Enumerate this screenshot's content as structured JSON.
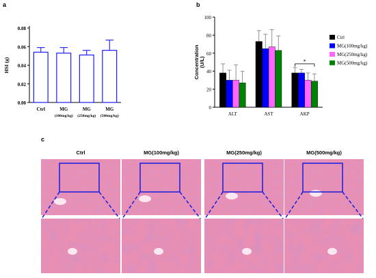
{
  "panels": {
    "a": "a",
    "b": "b",
    "c": "c"
  },
  "chart_data": [
    {
      "type": "bar",
      "panel": "a",
      "categories": [
        "Ctrl",
        "MG",
        "MG",
        "MG"
      ],
      "category_sublabels": [
        "",
        "(100mg/kg)",
        "(250mg/kg)",
        "(500mg/kg)"
      ],
      "values": [
        0.054,
        0.053,
        0.051,
        0.056
      ],
      "errors": [
        0.005,
        0.006,
        0.005,
        0.011
      ],
      "ylabel": "HSI (g)",
      "ylim": [
        0,
        0.08
      ],
      "yticks": [
        "0.00",
        "0.02",
        "0.04",
        "0.06",
        "0.08"
      ],
      "ytick_values": [
        0,
        0.02,
        0.04,
        0.06,
        0.08
      ],
      "bar_fill": "#ffffff",
      "bar_stroke": "#1a1aff",
      "grid": false
    },
    {
      "type": "bar",
      "panel": "b",
      "categories": [
        "ALT",
        "AST",
        "AKP"
      ],
      "series": [
        {
          "name": "Ctrl",
          "values": [
            38,
            73,
            38
          ],
          "errors": [
            10,
            12,
            6
          ],
          "color": "#000000"
        },
        {
          "name": "MG(100mg/kg)",
          "values": [
            30,
            65,
            38
          ],
          "errors": [
            11,
            16,
            4
          ],
          "color": "#0000ff"
        },
        {
          "name": "MG(250mg/kg)",
          "values": [
            30,
            67,
            30
          ],
          "errors": [
            17,
            19,
            8
          ],
          "color": "#ff66ff"
        },
        {
          "name": "MG(500mg/kg)",
          "values": [
            27,
            63,
            29
          ],
          "errors": [
            13,
            16,
            8
          ],
          "color": "#008000"
        }
      ],
      "ylabel": "Concentration",
      "ylabel2": "(U/L)",
      "ylim": [
        0,
        100
      ],
      "yticks": [
        "0",
        "20",
        "40",
        "60",
        "80",
        "100"
      ],
      "ytick_values": [
        0,
        20,
        40,
        60,
        80,
        100
      ],
      "significance": {
        "label": "*",
        "category": "AKP",
        "between": [
          "Ctrl",
          "MG(500mg/kg)"
        ]
      },
      "legend_position": "right",
      "grid": false
    }
  ],
  "histology": {
    "columns": [
      {
        "title": "Ctrl"
      },
      {
        "title": "MG(100mg/kg)"
      },
      {
        "title": "MG(250mg/kg)"
      },
      {
        "title": "MG(500mg/kg)"
      }
    ],
    "tissue_color": "#e98fb4",
    "tissue_dark": "#b54a86",
    "highlight_color": "#2222dd"
  }
}
